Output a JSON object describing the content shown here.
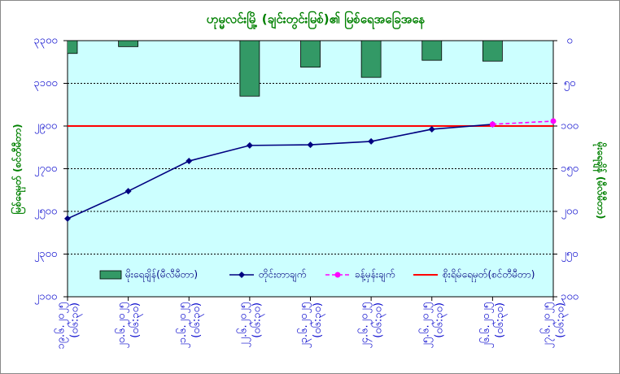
{
  "chart_data": {
    "type": "combo",
    "title": "ဟုမ္မလင်းမြို့ (ချင်းတွင်းမြစ်)၏ မြစ်ရေအခြေအနေ",
    "y_label": "မြစ်ရေမှတ် (စင်တီမီတာ)",
    "y2_label": "မိုးရေချိန် (မီလီမီတာ)",
    "categories": [
      "၁၉.၆.၂၀၂၅",
      "၂၀.၆.၂၀၂၅",
      "၂၁.၆.၂၀၂၅",
      "၂၂.၆.၂၀၂၅",
      "၂၃.၆.၂၀၂၅",
      "၂၄.၆.၂၀၂၅",
      "၂၅.၆.၂၀၂၅",
      "၂၆.၆.၂၀၂၅",
      "၂၇.၆.၂၀၂၅"
    ],
    "times": [
      "(၀၆:၃၀)",
      "(၀၆:၃၀)",
      "(၀၆:၃၀)",
      "(၀၆:၃၀)",
      "(၀၆:၃၀)",
      "(၀၆:၃၀)",
      "(၀၆:၃၀)",
      "(၀၆:၃၀)",
      "(၀၆:၃၀)"
    ],
    "ylim": [
      2100,
      3300
    ],
    "yticks": [
      {
        "value": 2100,
        "label": "၂၁၀၀"
      },
      {
        "value": 2300,
        "label": "၂၃၀၀"
      },
      {
        "value": 2500,
        "label": "၂၅၀၀"
      },
      {
        "value": 2700,
        "label": "၂၇၀၀"
      },
      {
        "value": 2900,
        "label": "၂၉၀၀"
      },
      {
        "value": 3100,
        "label": "၃၁၀၀"
      },
      {
        "value": 3300,
        "label": "၃၃၀၀"
      }
    ],
    "y2lim": [
      0,
      300
    ],
    "y2_reversed": true,
    "y2ticks": [
      {
        "value": 0,
        "label": "၀"
      },
      {
        "value": 50,
        "label": "၅၀"
      },
      {
        "value": 100,
        "label": "၁၀၀"
      },
      {
        "value": 150,
        "label": "၁၅၀"
      },
      {
        "value": 200,
        "label": "၂၀၀"
      },
      {
        "value": 250,
        "label": "၂၅၀"
      },
      {
        "value": 300,
        "label": "၃၀၀"
      }
    ],
    "grid": true,
    "series": [
      {
        "name": "မိုးရေချိန်(မီလီမီတာ)",
        "kind": "bar",
        "axis": "y2",
        "color": "#339966",
        "values": [
          15,
          7,
          0,
          65,
          31,
          43,
          23,
          24,
          0
        ]
      },
      {
        "name": "တိုင်းတာချက်",
        "kind": "line",
        "color": "#000080",
        "marker": "diamond",
        "values": [
          2466,
          2595,
          2736,
          2809,
          2812,
          2828,
          2885,
          2908,
          null
        ]
      },
      {
        "name": "ခန့်မှန်းချက်",
        "kind": "line",
        "color": "#ff00ff",
        "marker": "circle",
        "dashed": true,
        "values": [
          null,
          null,
          null,
          null,
          null,
          null,
          null,
          2908,
          2923
        ]
      }
    ],
    "reference_line": {
      "name": "စိုးရိမ်ရေမှတ်(စင်တီမီတာ)",
      "value": 2900,
      "color": "#ff0000"
    }
  }
}
